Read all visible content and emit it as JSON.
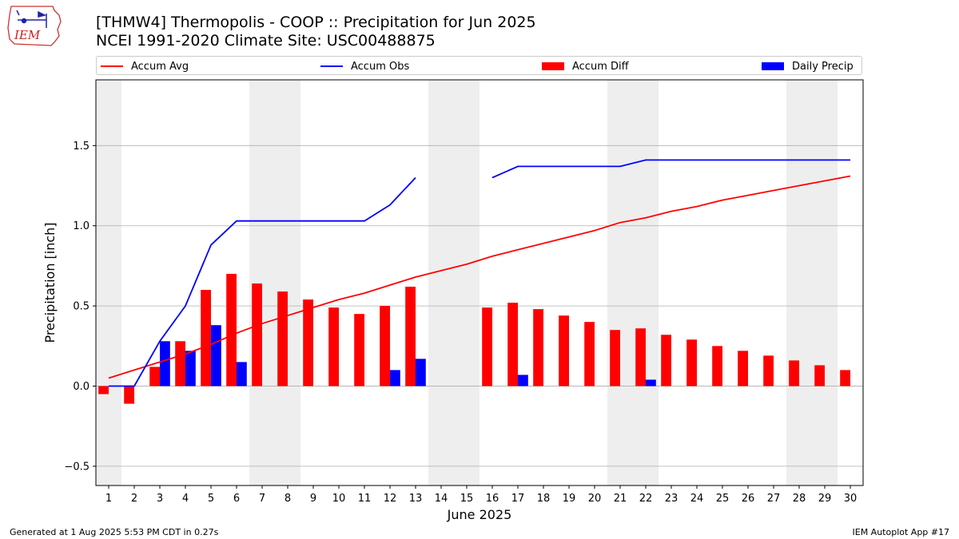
{
  "header": {
    "title_line1": "[THMW4] Thermopolis - COOP :: Precipitation for Jun 2025",
    "title_line2": "NCEI 1991-2020 Climate Site: USC00488875",
    "logo_text": "IEM"
  },
  "footer": {
    "generated": "Generated at 1 Aug 2025 5:53 PM CDT in 0.27s",
    "app": "IEM Autoplot App #17"
  },
  "legend": {
    "items": [
      {
        "label": "Accum Avg",
        "kind": "line",
        "color": "#ff0000"
      },
      {
        "label": "Accum Obs",
        "kind": "line",
        "color": "#0000ff"
      },
      {
        "label": "Accum Diff",
        "kind": "rect",
        "color": "#ff0000"
      },
      {
        "label": "Daily Precip",
        "kind": "rect",
        "color": "#0000ff"
      }
    ]
  },
  "colors": {
    "avg": "#ff0000",
    "obs": "#0000ff",
    "diff": "#ff0000",
    "daily": "#0000ff",
    "weekend_shade": "#eeeeee",
    "grid": "#b0b0b0"
  },
  "chart_data": {
    "type": "bar",
    "title": "[THMW4] Thermopolis - COOP :: Precipitation for Jun 2025",
    "subtitle": "NCEI 1991-2020 Climate Site: USC00488875",
    "xlabel": "June 2025",
    "ylabel": "Precipitation [inch]",
    "xlim": [
      0.5,
      30.5
    ],
    "ylim": [
      -0.62,
      1.91
    ],
    "yticks": [
      -0.5,
      0.0,
      0.5,
      1.0,
      1.5
    ],
    "ytick_labels": [
      "−0.5",
      "0.0",
      "0.5",
      "1.0",
      "1.5"
    ],
    "days": [
      1,
      2,
      3,
      4,
      5,
      6,
      7,
      8,
      9,
      10,
      11,
      12,
      13,
      14,
      15,
      16,
      17,
      18,
      19,
      20,
      21,
      22,
      23,
      24,
      25,
      26,
      27,
      28,
      29,
      30
    ],
    "shaded_day_ranges": [
      [
        0.5,
        1.5
      ],
      [
        6.5,
        8.5
      ],
      [
        13.5,
        15.5
      ],
      [
        20.5,
        22.5
      ],
      [
        27.5,
        29.5
      ]
    ],
    "grid": "horizontal",
    "series": [
      {
        "name": "Accum Avg",
        "type": "line",
        "values": [
          0.05,
          0.1,
          0.15,
          0.2,
          0.26,
          0.33,
          0.39,
          0.44,
          0.49,
          0.54,
          0.58,
          0.63,
          0.68,
          0.72,
          0.76,
          0.81,
          0.85,
          0.89,
          0.93,
          0.97,
          1.02,
          1.05,
          1.09,
          1.12,
          1.16,
          1.19,
          1.22,
          1.25,
          1.28,
          1.31
        ]
      },
      {
        "name": "Accum Obs",
        "type": "line",
        "values": [
          0.0,
          0.0,
          0.28,
          0.5,
          0.88,
          1.03,
          1.03,
          1.03,
          1.03,
          1.03,
          1.03,
          1.13,
          1.3,
          null,
          null,
          1.3,
          1.37,
          1.37,
          1.37,
          1.37,
          1.37,
          1.41,
          1.41,
          1.41,
          1.41,
          1.41,
          1.41,
          1.41,
          1.41,
          1.41
        ]
      },
      {
        "name": "Accum Diff",
        "type": "bar",
        "values": [
          -0.05,
          -0.11,
          0.12,
          0.28,
          0.6,
          0.7,
          0.64,
          0.59,
          0.54,
          0.49,
          0.45,
          0.5,
          0.62,
          null,
          null,
          0.49,
          0.52,
          0.48,
          0.44,
          0.4,
          0.35,
          0.36,
          0.32,
          0.29,
          0.25,
          0.22,
          0.19,
          0.16,
          0.13,
          0.1
        ]
      },
      {
        "name": "Daily Precip",
        "type": "bar",
        "values": [
          0.0,
          0.0,
          0.28,
          0.22,
          0.38,
          0.15,
          0.0,
          0.0,
          0.0,
          0.0,
          0.0,
          0.1,
          0.17,
          null,
          null,
          0.0,
          0.07,
          0.0,
          0.0,
          0.0,
          0.0,
          0.04,
          0.0,
          0.0,
          0.0,
          0.0,
          0.0,
          0.0,
          0.0,
          0.0
        ]
      }
    ]
  }
}
